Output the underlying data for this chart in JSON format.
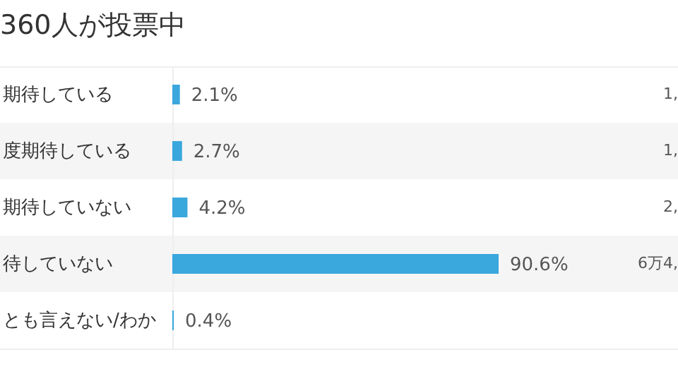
{
  "chart_data": {
    "type": "bar",
    "orientation": "horizontal",
    "title": "360人が投票中",
    "categories": [
      "期待している",
      "度期待している",
      "期待していない",
      "待していない",
      "とも言えない/わか"
    ],
    "values": [
      2.1,
      2.7,
      4.2,
      90.6,
      0.4
    ],
    "value_labels": [
      "2.1%",
      "2.7%",
      "4.2%",
      "90.6%",
      "0.4%"
    ],
    "color": "#3aa7dd",
    "tick_labels": "y",
    "grid": false,
    "legend": false,
    "annotations": [
      "1,",
      "1,",
      "2,",
      "6万4,"
    ]
  }
}
